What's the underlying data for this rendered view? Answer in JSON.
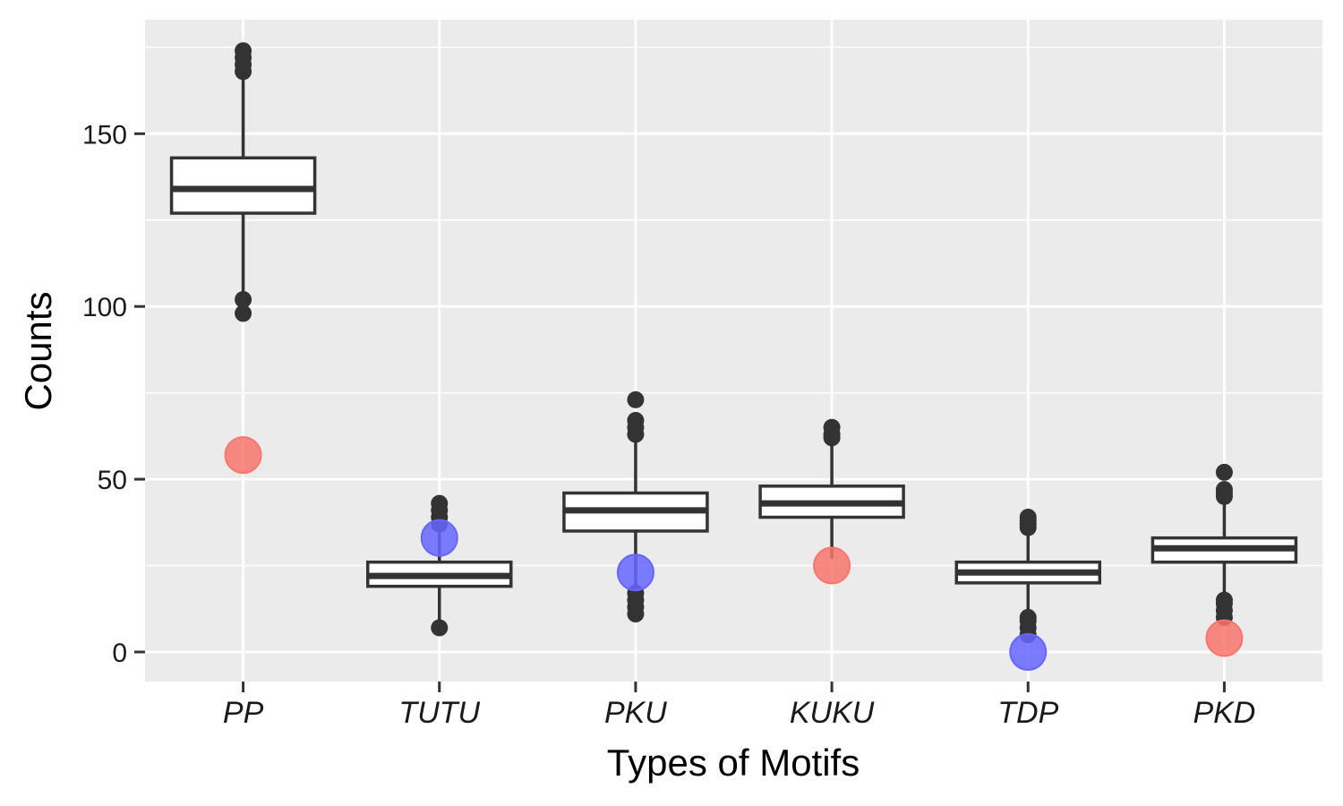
{
  "chart_data": {
    "type": "box",
    "xlabel": "Types of Motifs",
    "ylabel": "Counts",
    "ylim": [
      -8,
      182
    ],
    "y_ticks": [
      0,
      50,
      100,
      150
    ],
    "y_minor_ticks": [
      25,
      75,
      125,
      175
    ],
    "categories": [
      "PP",
      "TUTU",
      "PKU",
      "KUKU",
      "TDP",
      "PKD"
    ],
    "grid": true,
    "panel_background": "#ebebeb",
    "box_stroke": "#333333",
    "boxes": [
      {
        "category": "PP",
        "lower_whisker": 104,
        "q1": 127,
        "median": 134,
        "q3": 143,
        "upper_whisker": 166,
        "outliers": [
          98,
          102,
          168,
          170,
          172,
          174
        ]
      },
      {
        "category": "TUTU",
        "lower_whisker": 8,
        "q1": 19,
        "median": 22,
        "q3": 26,
        "upper_whisker": 36,
        "outliers": [
          7,
          37,
          39,
          41,
          43
        ]
      },
      {
        "category": "PKU",
        "lower_whisker": 19,
        "q1": 35,
        "median": 41,
        "q3": 46,
        "upper_whisker": 62,
        "outliers": [
          11,
          13,
          15,
          17,
          63,
          65,
          67,
          73
        ]
      },
      {
        "category": "KUKU",
        "lower_whisker": 27,
        "q1": 39,
        "median": 43,
        "q3": 48,
        "upper_whisker": 61,
        "outliers": [
          62,
          63,
          65
        ]
      },
      {
        "category": "TDP",
        "lower_whisker": 11,
        "q1": 20,
        "median": 23,
        "q3": 26,
        "upper_whisker": 35,
        "outliers": [
          5,
          7,
          9,
          10,
          36,
          37,
          38,
          39
        ]
      },
      {
        "category": "PKD",
        "lower_whisker": 16,
        "q1": 26,
        "median": 30,
        "q3": 33,
        "upper_whisker": 44,
        "outliers": [
          10,
          12,
          14,
          15,
          45,
          46,
          47,
          52
        ]
      }
    ],
    "observed_points": [
      {
        "category": "PP",
        "value": 57,
        "color": "#f8766d"
      },
      {
        "category": "TUTU",
        "value": 33,
        "color": "#6666ff"
      },
      {
        "category": "PKU",
        "value": 23,
        "color": "#6666ff"
      },
      {
        "category": "KUKU",
        "value": 25,
        "color": "#f8766d"
      },
      {
        "category": "TDP",
        "value": 0,
        "color": "#6666ff"
      },
      {
        "category": "PKD",
        "value": 4,
        "color": "#f8766d"
      }
    ]
  }
}
